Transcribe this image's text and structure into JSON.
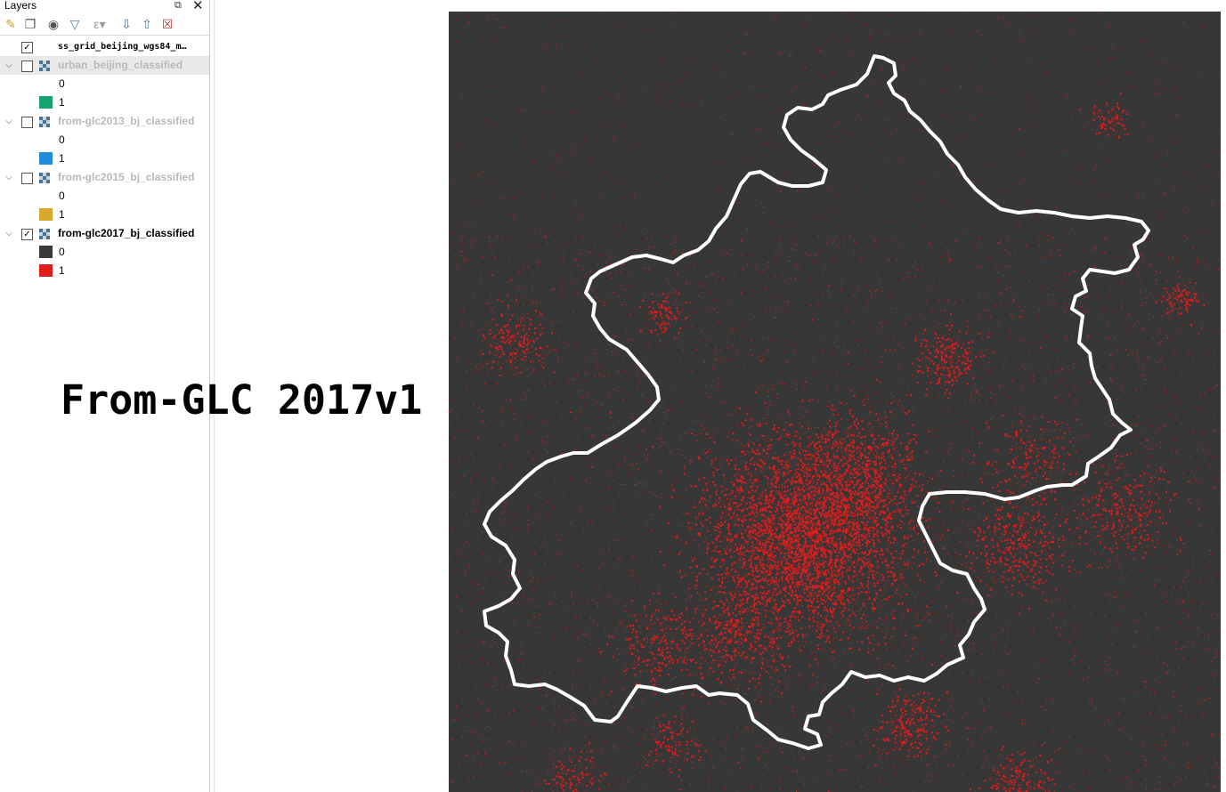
{
  "panel": {
    "title": "Layers",
    "float_icon": "float-icon",
    "close_icon": "close-icon",
    "toolbar_icons": [
      "open-layer-styling-icon",
      "add-group-icon",
      "manage-map-themes-icon",
      "filter-legend-icon",
      "filter-by-expression-icon",
      "expand-all-icon",
      "collapse-all-icon",
      "remove-layer-icon"
    ]
  },
  "layers": [
    {
      "name": "ss_grid_beijing_wgs84_m…",
      "checked": true,
      "enabled": true
    },
    {
      "name": "urban_beijing_classified",
      "checked": false,
      "enabled": false,
      "classes": [
        {
          "label": "0",
          "color": ""
        },
        {
          "label": "1",
          "color": "#16a36e"
        }
      ]
    },
    {
      "name": "from-glc2013_bj_classified",
      "checked": false,
      "enabled": false,
      "classes": [
        {
          "label": "0",
          "color": ""
        },
        {
          "label": "1",
          "color": "#1f8ddb"
        }
      ]
    },
    {
      "name": "from-glc2015_bj_classified",
      "checked": false,
      "enabled": false,
      "classes": [
        {
          "label": "0",
          "color": ""
        },
        {
          "label": "1",
          "color": "#d6a92a"
        }
      ]
    },
    {
      "name": "from-glc2017_bj_classified",
      "checked": true,
      "enabled": true,
      "classes": [
        {
          "label": "0",
          "color": "#3a3a3a"
        },
        {
          "label": "1",
          "color": "#e01c1c"
        }
      ]
    }
  ],
  "map": {
    "caption": "From-GLC 2017v1",
    "background_color": "#373737",
    "urban_color": "#e01c1c",
    "boundary_color": "#ffffff"
  }
}
